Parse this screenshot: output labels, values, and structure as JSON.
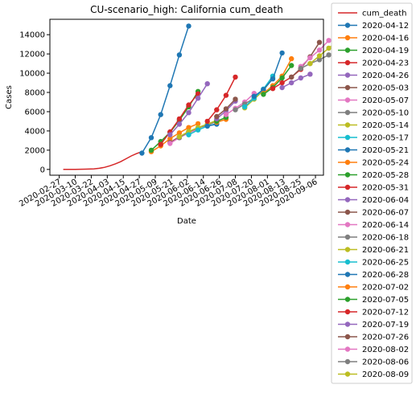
{
  "chart_data": {
    "type": "line",
    "title": "CU-scenario_high: California cum_death",
    "xlabel": "Date",
    "ylabel": "Cases",
    "x_ticks": [
      "2020-02-27",
      "2020-03-10",
      "2020-03-22",
      "2020-04-03",
      "2020-04-15",
      "2020-04-27",
      "2020-05-09",
      "2020-05-21",
      "2020-06-02",
      "2020-06-14",
      "2020-06-26",
      "2020-07-08",
      "2020-07-20",
      "2020-08-01",
      "2020-08-13",
      "2020-08-25",
      "2020-09-06"
    ],
    "y_ticks": [
      0,
      2000,
      4000,
      6000,
      8000,
      10000,
      12000,
      14000
    ],
    "ylim": [
      -600,
      15600
    ],
    "xlim": [
      "2020-02-20",
      "2020-09-12"
    ],
    "grid": false,
    "legend_position": "outside-right",
    "cum_death": {
      "name": "cum_death",
      "color": "#d62728",
      "x": [
        "2020-03-01",
        "2020-03-10",
        "2020-03-17",
        "2020-03-24",
        "2020-03-28",
        "2020-04-01",
        "2020-04-05",
        "2020-04-09",
        "2020-04-13",
        "2020-04-17",
        "2020-04-21",
        "2020-04-25",
        "2020-04-29"
      ],
      "y": [
        0,
        10,
        30,
        60,
        120,
        220,
        380,
        580,
        800,
        1100,
        1400,
        1650,
        1850
      ]
    },
    "series": [
      {
        "name": "2020-04-12",
        "color": "#1f77b4",
        "x": [
          "2020-04-29",
          "2020-05-06",
          "2020-05-13",
          "2020-05-20",
          "2020-05-27",
          "2020-06-03"
        ],
        "y": [
          1700,
          3300,
          5700,
          8700,
          11900,
          14900
        ]
      },
      {
        "name": "2020-04-16",
        "color": "#ff7f0e",
        "x": [
          "2020-05-06",
          "2020-05-13",
          "2020-05-20",
          "2020-05-27",
          "2020-06-03",
          "2020-06-10"
        ],
        "y": [
          1850,
          2450,
          3200,
          3800,
          4350,
          4750
        ]
      },
      {
        "name": "2020-04-19",
        "color": "#2ca02c",
        "x": [
          "2020-05-06",
          "2020-05-13",
          "2020-05-20",
          "2020-05-27",
          "2020-06-03",
          "2020-06-10"
        ],
        "y": [
          2000,
          2900,
          3850,
          5100,
          6500,
          8100
        ]
      },
      {
        "name": "2020-04-23",
        "color": "#d62728",
        "x": [
          "2020-05-13",
          "2020-05-20",
          "2020-05-27",
          "2020-06-03",
          "2020-06-10"
        ],
        "y": [
          2600,
          3900,
          5250,
          6700,
          7850
        ]
      },
      {
        "name": "2020-04-26",
        "color": "#9467bd",
        "x": [
          "2020-05-20",
          "2020-05-27",
          "2020-06-03",
          "2020-06-10",
          "2020-06-17"
        ],
        "y": [
          3600,
          4700,
          5900,
          7400,
          8900
        ]
      },
      {
        "name": "2020-05-03",
        "color": "#8c564b",
        "x": [
          "2020-05-20",
          "2020-05-27",
          "2020-06-03",
          "2020-06-10"
        ],
        "y": [
          2800,
          3400,
          3900,
          4300
        ]
      },
      {
        "name": "2020-05-07",
        "color": "#e377c2",
        "x": [
          "2020-05-20",
          "2020-05-27",
          "2020-06-03",
          "2020-06-10"
        ],
        "y": [
          2700,
          3300,
          3800,
          4200
        ]
      },
      {
        "name": "2020-05-10",
        "color": "#7f7f7f",
        "x": [
          "2020-05-27",
          "2020-06-03",
          "2020-06-10",
          "2020-06-17",
          "2020-06-24"
        ],
        "y": [
          3300,
          3900,
          4300,
          4600,
          5000
        ]
      },
      {
        "name": "2020-05-14",
        "color": "#bcbd22",
        "x": [
          "2020-05-27",
          "2020-06-03",
          "2020-06-10",
          "2020-06-17",
          "2020-06-24"
        ],
        "y": [
          3400,
          3950,
          4350,
          4700,
          5100
        ]
      },
      {
        "name": "2020-05-17",
        "color": "#17becf",
        "x": [
          "2020-06-03",
          "2020-06-10",
          "2020-06-17",
          "2020-06-24"
        ],
        "y": [
          3600,
          4100,
          4500,
          4750
        ]
      },
      {
        "name": "2020-05-21",
        "color": "#1f77b4",
        "x": [
          "2020-06-17",
          "2020-06-24"
        ],
        "y": [
          4500,
          4700
        ]
      },
      {
        "name": "2020-05-24",
        "color": "#ff7f0e",
        "x": [
          "2020-06-24",
          "2020-07-01"
        ],
        "y": [
          4900,
          5200
        ]
      },
      {
        "name": "2020-05-28",
        "color": "#2ca02c",
        "x": [
          "2020-06-24",
          "2020-07-01"
        ],
        "y": [
          5000,
          5400
        ]
      },
      {
        "name": "2020-05-31",
        "color": "#d62728",
        "x": [
          "2020-06-17",
          "2020-06-24",
          "2020-07-01",
          "2020-07-08"
        ],
        "y": [
          5000,
          6200,
          7700,
          9600
        ]
      },
      {
        "name": "2020-06-04",
        "color": "#9467bd",
        "x": [
          "2020-06-24",
          "2020-07-01",
          "2020-07-08"
        ],
        "y": [
          5250,
          6100,
          7100
        ]
      },
      {
        "name": "2020-06-07",
        "color": "#8c564b",
        "x": [
          "2020-06-24",
          "2020-07-01",
          "2020-07-08"
        ],
        "y": [
          5500,
          6300,
          7300
        ]
      },
      {
        "name": "2020-06-14",
        "color": "#e377c2",
        "x": [
          "2020-07-01",
          "2020-07-08",
          "2020-07-15",
          "2020-07-22"
        ],
        "y": [
          5700,
          6350,
          7000,
          7900
        ]
      },
      {
        "name": "2020-06-18",
        "color": "#7f7f7f",
        "x": [
          "2020-07-08",
          "2020-07-15",
          "2020-07-22",
          "2020-07-29"
        ],
        "y": [
          6200,
          6800,
          7400,
          8300
        ]
      },
      {
        "name": "2020-06-21",
        "color": "#bcbd22",
        "x": [
          "2020-07-15",
          "2020-07-22",
          "2020-07-29",
          "2020-08-05"
        ],
        "y": [
          6400,
          7300,
          8200,
          9500
        ]
      },
      {
        "name": "2020-06-25",
        "color": "#17becf",
        "x": [
          "2020-07-15",
          "2020-07-22",
          "2020-07-29",
          "2020-08-05"
        ],
        "y": [
          6500,
          7400,
          8350,
          9700
        ]
      },
      {
        "name": "2020-06-28",
        "color": "#1f77b4",
        "x": [
          "2020-07-22",
          "2020-07-29",
          "2020-08-05",
          "2020-08-12"
        ],
        "y": [
          7600,
          8300,
          9400,
          12100
        ]
      },
      {
        "name": "2020-07-02",
        "color": "#ff7f0e",
        "x": [
          "2020-07-29",
          "2020-08-05",
          "2020-08-12",
          "2020-08-19"
        ],
        "y": [
          7900,
          8700,
          9700,
          11500
        ]
      },
      {
        "name": "2020-07-05",
        "color": "#2ca02c",
        "x": [
          "2020-07-29",
          "2020-08-05",
          "2020-08-12",
          "2020-08-19"
        ],
        "y": [
          7800,
          8500,
          9500,
          10800
        ]
      },
      {
        "name": "2020-07-12",
        "color": "#d62728",
        "x": [
          "2020-08-05",
          "2020-08-12",
          "2020-08-19",
          "2020-08-26"
        ],
        "y": [
          8400,
          9000,
          9600,
          10400
        ]
      },
      {
        "name": "2020-07-19",
        "color": "#9467bd",
        "x": [
          "2020-08-12",
          "2020-08-19",
          "2020-08-26",
          "2020-09-02"
        ],
        "y": [
          8500,
          9000,
          9500,
          9900
        ]
      },
      {
        "name": "2020-07-26",
        "color": "#8c564b",
        "x": [
          "2020-08-19",
          "2020-08-26",
          "2020-09-02",
          "2020-09-09"
        ],
        "y": [
          9600,
          10500,
          11700,
          13200
        ]
      },
      {
        "name": "2020-08-02",
        "color": "#e377c2",
        "x": [
          "2020-08-26",
          "2020-09-02",
          "2020-09-09",
          "2020-09-16"
        ],
        "y": [
          10700,
          11600,
          12400,
          13400
        ]
      },
      {
        "name": "2020-08-06",
        "color": "#7f7f7f",
        "x": [
          "2020-08-26",
          "2020-09-02",
          "2020-09-09",
          "2020-09-16",
          "2020-09-23"
        ],
        "y": [
          10500,
          11000,
          11400,
          11900,
          12300
        ]
      },
      {
        "name": "2020-08-09",
        "color": "#bcbd22",
        "x": [
          "2020-09-02",
          "2020-09-09",
          "2020-09-16",
          "2020-09-23"
        ],
        "y": [
          11000,
          11800,
          12600,
          13400
        ]
      }
    ]
  }
}
